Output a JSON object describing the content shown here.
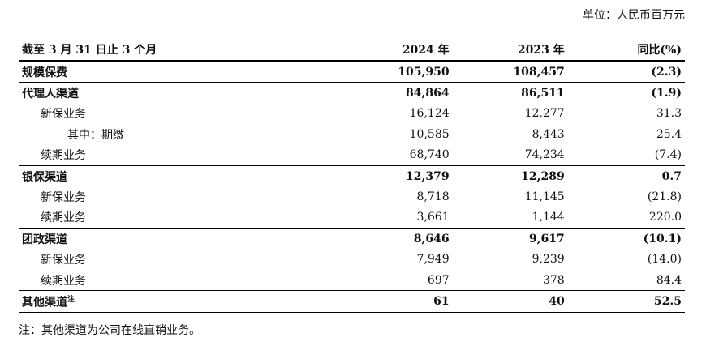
{
  "unit_label": "单位：人民币百万元",
  "header": {
    "label": "截至 3 月 31 日止 3 个月",
    "col1": "2024 年",
    "col2": "2023 年",
    "col3": "同比(%)"
  },
  "rows": [
    {
      "label": "规模保费",
      "v2024": "105,950",
      "v2023": "108,457",
      "yoy": "(2.3)"
    },
    {
      "label": "代理人渠道",
      "v2024": "84,864",
      "v2023": "86,511",
      "yoy": "(1.9)"
    },
    {
      "label": "新保业务",
      "v2024": "16,124",
      "v2023": "12,277",
      "yoy": "31.3"
    },
    {
      "label": "其中：期缴",
      "v2024": "10,585",
      "v2023": "8,443",
      "yoy": "25.4"
    },
    {
      "label": "续期业务",
      "v2024": "68,740",
      "v2023": "74,234",
      "yoy": "(7.4)"
    },
    {
      "label": "银保渠道",
      "v2024": "12,379",
      "v2023": "12,289",
      "yoy": "0.7"
    },
    {
      "label": "新保业务",
      "v2024": "8,718",
      "v2023": "11,145",
      "yoy": "(21.8)"
    },
    {
      "label": "续期业务",
      "v2024": "3,661",
      "v2023": "1,144",
      "yoy": "220.0"
    },
    {
      "label": "团政渠道",
      "v2024": "8,646",
      "v2023": "9,617",
      "yoy": "(10.1)"
    },
    {
      "label": "新保业务",
      "v2024": "7,949",
      "v2023": "9,239",
      "yoy": "(14.0)"
    },
    {
      "label": "续期业务",
      "v2024": "697",
      "v2023": "378",
      "yoy": "84.4"
    },
    {
      "label": "其他渠道",
      "label_sup": "注",
      "v2024": "61",
      "v2023": "40",
      "yoy": "52.5"
    }
  ],
  "footnote": "注：其他渠道为公司在线直销业务。"
}
